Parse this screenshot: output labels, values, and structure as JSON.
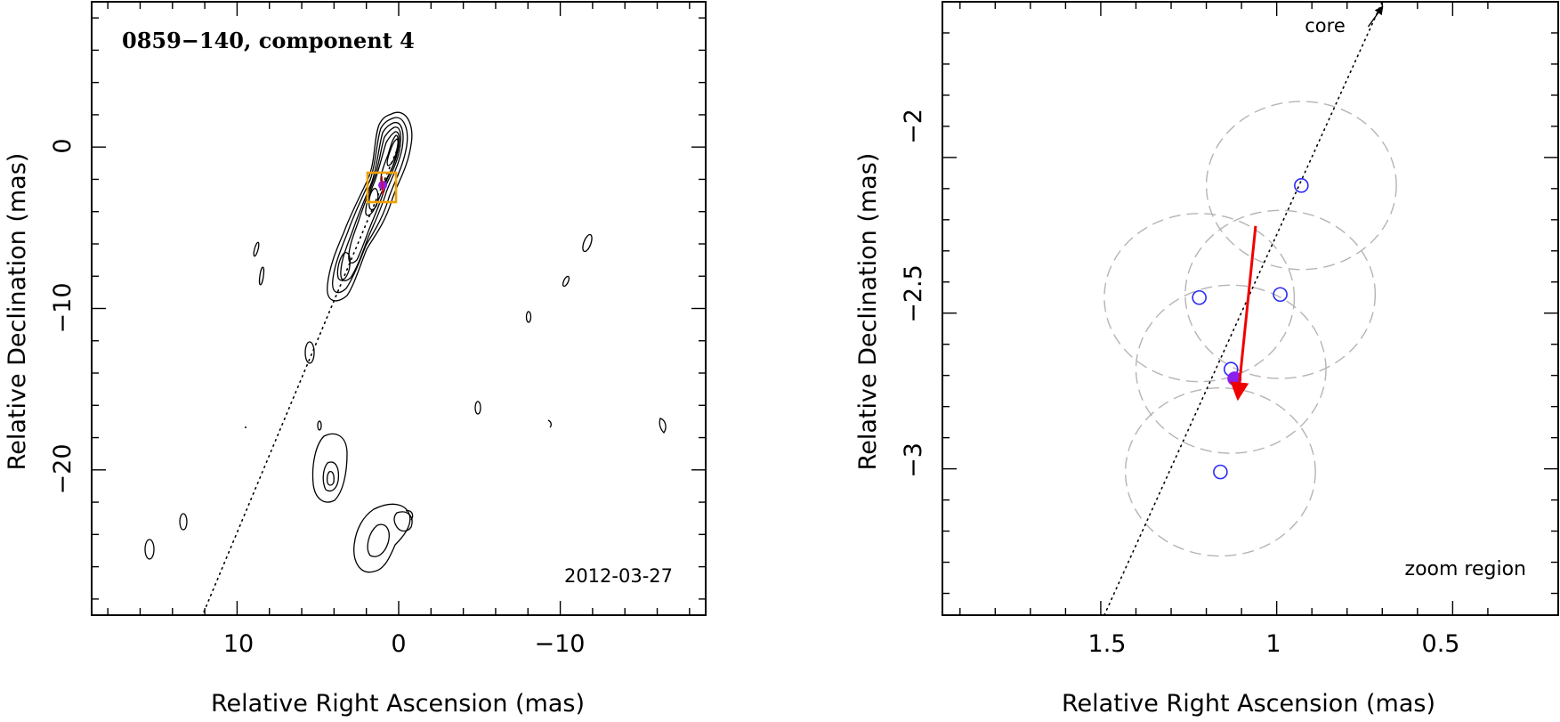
{
  "chart_data": [
    {
      "type": "contour",
      "title": "0859−140, component 4",
      "date_label": "2012-03-27",
      "xlabel": "Relative Right Ascension (mas)",
      "ylabel": "Relative Declination (mas)",
      "xlim": [
        19,
        -19
      ],
      "ylim": [
        -29,
        9
      ],
      "xticks": [
        10,
        0,
        -10
      ],
      "xtick_labels": [
        "10",
        "0",
        "−10"
      ],
      "yticks": [
        0,
        -10,
        -20
      ],
      "ytick_labels": [
        "0",
        "−10",
        "−20"
      ],
      "jet_axis": {
        "from": [
          0,
          0
        ],
        "to": [
          12.3,
          -28.8
        ]
      },
      "zoom_box": {
        "x": [
          0.5,
          2.6
        ],
        "y": [
          -1.6,
          -3.5
        ],
        "color": "#f0a000"
      },
      "component_marker": {
        "x": 1.1,
        "y": -2.6
      }
    },
    {
      "type": "scatter",
      "annotation_top": "core",
      "annotation_bottom": "zoom region",
      "xlabel": "Relative Right Ascension (mas)",
      "ylabel": "Relative Declination (mas)",
      "xlim": [
        1.95,
        0.2
      ],
      "ylim": [
        -3.47,
        -1.5
      ],
      "xticks": [
        1.5,
        1,
        0.5
      ],
      "xtick_labels": [
        "1.5",
        "1",
        "0.5"
      ],
      "yticks": [
        -2,
        -2.5,
        -3
      ],
      "ytick_labels": [
        "−2",
        "−2.5",
        "−3"
      ],
      "positions": [
        {
          "x": 0.93,
          "y": -2.09
        },
        {
          "x": 1.22,
          "y": -2.45
        },
        {
          "x": 0.99,
          "y": -2.44
        },
        {
          "x": 1.13,
          "y": -2.68
        },
        {
          "x": 1.16,
          "y": -3.01
        }
      ],
      "position_color": "#2a2af5",
      "fitted_position": {
        "x": 1.12,
        "y": -2.71,
        "color": "#8a20f0"
      },
      "uncertainty_radius_mas": 0.27,
      "velocity_arrow": {
        "from": [
          1.06,
          -2.22
        ],
        "to": [
          1.11,
          -2.77
        ],
        "color": "#f00000"
      },
      "jet_axis": {
        "from": [
          1.49,
          -3.47
        ],
        "to": [
          0.7,
          -1.5
        ]
      },
      "core_direction_arrow": {
        "from": [
          0.74,
          -1.58
        ],
        "to": [
          0.7,
          -1.5
        ]
      }
    }
  ]
}
